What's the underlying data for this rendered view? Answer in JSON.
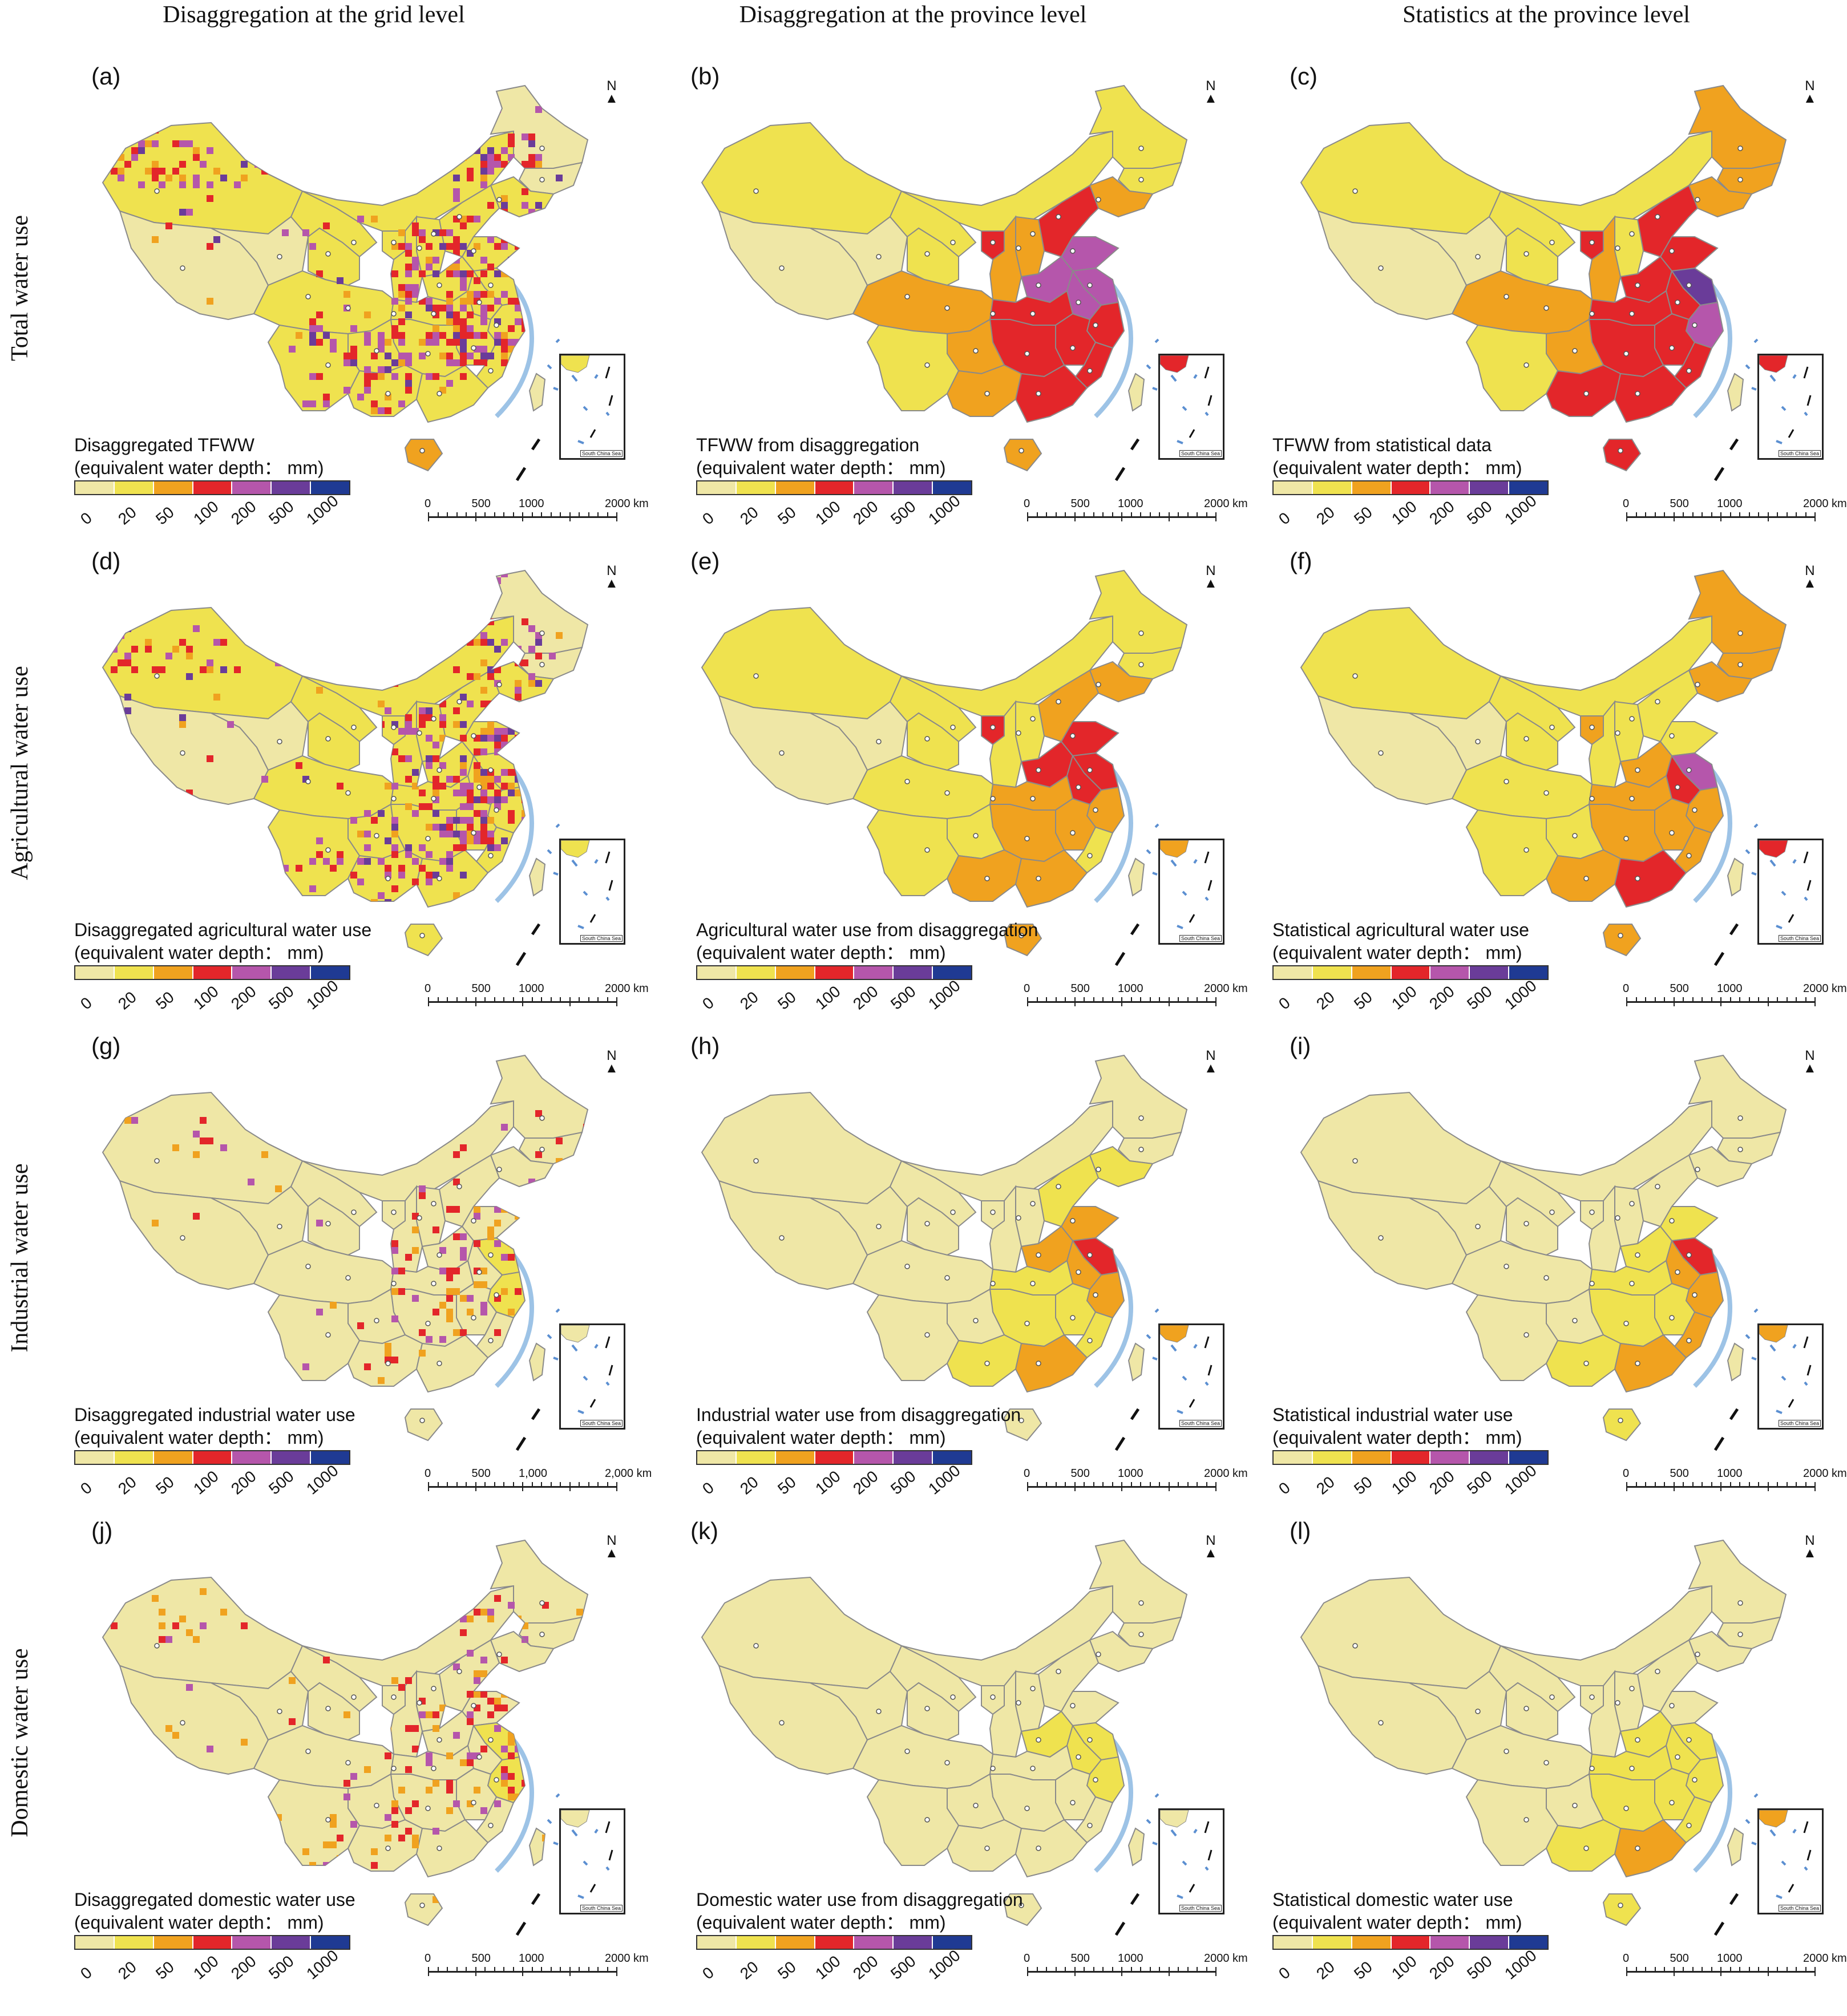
{
  "columns": [
    "Disaggregation at the grid level",
    "Disaggregation at the province level",
    "Statistics at the province level"
  ],
  "rows": [
    "Total water use",
    "Agricultural water use",
    "Industrial water use",
    "Domestic water use"
  ],
  "legend_colors": [
    "#efe7a6",
    "#efe24f",
    "#f0a21f",
    "#e3262a",
    "#b556ab",
    "#6a3c99",
    "#1f3a93"
  ],
  "legend_ticks": [
    "0",
    "20",
    "50",
    "100",
    "200",
    "500",
    "1000"
  ],
  "north_symbol": "N",
  "inset_caption": "South China Sea",
  "panels": [
    {
      "label": "(a)",
      "legend_title": "Disaggregated TFWW",
      "legend_unit": "(equivalent water depth： mm)",
      "scale": [
        "0",
        "500",
        "1000",
        "2000 km"
      ],
      "province_levels": {
        "xj": 1,
        "tb": 0,
        "qh": 0,
        "nm": 1,
        "gs": 1,
        "ic": 1,
        "sc": 1,
        "yn": 1,
        "gz": 1,
        "gx": 1,
        "hun": 1,
        "hub": 1,
        "jx": 1,
        "fj": 1,
        "zj": 1,
        "ah": 1,
        "js": 1,
        "sd": 1,
        "hen": 1,
        "heb": 1,
        "sx": 1,
        "sax": 1,
        "nx": 1,
        "ln": 1,
        "jl": 0,
        "hlj": 0,
        "gd": 1,
        "hain": 2,
        "tw": 0
      }
    },
    {
      "label": "(b)",
      "legend_title": "TFWW from disaggregation",
      "legend_unit": "(equivalent water depth： mm)",
      "scale": [
        "0",
        "500",
        "1000",
        "2000 km"
      ],
      "province_levels": {
        "xj": 1,
        "tb": 0,
        "qh": 0,
        "nm": 1,
        "gs": 1,
        "ic": 1,
        "sc": 2,
        "yn": 1,
        "gz": 2,
        "gx": 2,
        "hun": 3,
        "hub": 3,
        "jx": 3,
        "fj": 3,
        "zj": 3,
        "ah": 4,
        "js": 4,
        "sd": 4,
        "hen": 4,
        "heb": 3,
        "sx": 2,
        "sax": 2,
        "nx": 3,
        "ln": 2,
        "jl": 1,
        "hlj": 1,
        "gd": 3,
        "hain": 2,
        "tw": 0
      }
    },
    {
      "label": "(c)",
      "legend_title": "TFWW from statistical data",
      "legend_unit": "(equivalent water depth： mm)",
      "scale": [
        "0",
        "500",
        "1000",
        "2000 km"
      ],
      "province_levels": {
        "xj": 1,
        "tb": 0,
        "qh": 0,
        "nm": 1,
        "gs": 1,
        "ic": 1,
        "sc": 2,
        "yn": 1,
        "gz": 2,
        "gx": 3,
        "hun": 3,
        "hub": 3,
        "jx": 3,
        "fj": 3,
        "zj": 4,
        "ah": 3,
        "js": 5,
        "sd": 3,
        "hen": 3,
        "heb": 3,
        "sx": 1,
        "sax": 2,
        "nx": 3,
        "ln": 2,
        "jl": 2,
        "hlj": 2,
        "gd": 3,
        "hain": 3,
        "tw": 0
      }
    },
    {
      "label": "(d)",
      "legend_title": "Disaggregated agricultural water use",
      "legend_unit": "(equivalent water depth： mm)",
      "scale": [
        "0",
        "500",
        "1000",
        "2000 km"
      ],
      "province_levels": {
        "xj": 1,
        "tb": 0,
        "qh": 0,
        "nm": 1,
        "gs": 1,
        "ic": 1,
        "sc": 1,
        "yn": 1,
        "gz": 1,
        "gx": 1,
        "hun": 1,
        "hub": 1,
        "jx": 1,
        "fj": 1,
        "zj": 1,
        "ah": 1,
        "js": 1,
        "sd": 1,
        "hen": 1,
        "heb": 1,
        "sx": 1,
        "sax": 1,
        "nx": 1,
        "ln": 1,
        "jl": 0,
        "hlj": 0,
        "gd": 1,
        "hain": 1,
        "tw": 0
      }
    },
    {
      "label": "(e)",
      "legend_title": "Agricultural water use from disaggregation",
      "legend_unit": "(equivalent water depth： mm)",
      "scale": [
        "0",
        "500",
        "1000",
        "2000 km"
      ],
      "province_levels": {
        "xj": 1,
        "tb": 0,
        "qh": 0,
        "nm": 1,
        "gs": 1,
        "ic": 1,
        "sc": 1,
        "yn": 1,
        "gz": 1,
        "gx": 2,
        "hun": 2,
        "hub": 2,
        "jx": 2,
        "fj": 1,
        "zj": 2,
        "ah": 3,
        "js": 3,
        "sd": 3,
        "hen": 3,
        "heb": 2,
        "sx": 1,
        "sax": 1,
        "nx": 3,
        "ln": 2,
        "jl": 1,
        "hlj": 1,
        "gd": 2,
        "hain": 2,
        "tw": 0
      }
    },
    {
      "label": "(f)",
      "legend_title": "Statistical agricultural water use",
      "legend_unit": "(equivalent water depth： mm)",
      "scale": [
        "0",
        "500",
        "1000",
        "2000 km"
      ],
      "province_levels": {
        "xj": 1,
        "tb": 0,
        "qh": 0,
        "nm": 1,
        "gs": 1,
        "ic": 1,
        "sc": 1,
        "yn": 1,
        "gz": 1,
        "gx": 2,
        "hun": 2,
        "hub": 2,
        "jx": 2,
        "fj": 2,
        "zj": 2,
        "ah": 3,
        "js": 4,
        "sd": 1,
        "hen": 2,
        "heb": 1,
        "sx": 1,
        "sax": 1,
        "nx": 2,
        "ln": 2,
        "jl": 2,
        "hlj": 2,
        "gd": 3,
        "hain": 2,
        "tw": 0
      }
    },
    {
      "label": "(g)",
      "legend_title": "Disaggregated industrial water use",
      "legend_unit": "(equivalent water depth： mm)",
      "scale": [
        "0",
        "500",
        "1,000",
        "2,000 km"
      ],
      "province_levels": {
        "xj": 0,
        "tb": 0,
        "qh": 0,
        "nm": 0,
        "gs": 0,
        "ic": 0,
        "sc": 0,
        "yn": 0,
        "gz": 0,
        "gx": 0,
        "hun": 0,
        "hub": 0,
        "jx": 0,
        "fj": 0,
        "zj": 1,
        "ah": 0,
        "js": 1,
        "sd": 0,
        "hen": 0,
        "heb": 0,
        "sx": 0,
        "sax": 0,
        "nx": 0,
        "ln": 0,
        "jl": 0,
        "hlj": 0,
        "gd": 0,
        "hain": 0,
        "tw": 0
      }
    },
    {
      "label": "(h)",
      "legend_title": "Industrial water use from disaggregation",
      "legend_unit": "(equivalent water depth： mm)",
      "scale": [
        "0",
        "500",
        "1000",
        "2000 km"
      ],
      "province_levels": {
        "xj": 0,
        "tb": 0,
        "qh": 0,
        "nm": 0,
        "gs": 0,
        "ic": 0,
        "sc": 0,
        "yn": 0,
        "gz": 0,
        "gx": 1,
        "hun": 1,
        "hub": 1,
        "jx": 1,
        "fj": 1,
        "zj": 2,
        "ah": 2,
        "js": 3,
        "sd": 2,
        "hen": 2,
        "heb": 1,
        "sx": 0,
        "sax": 0,
        "nx": 0,
        "ln": 1,
        "jl": 0,
        "hlj": 0,
        "gd": 2,
        "hain": 0,
        "tw": 0
      }
    },
    {
      "label": "(i)",
      "legend_title": "Statistical industrial water use",
      "legend_unit": "(equivalent water depth： mm)",
      "scale": [
        "0",
        "500",
        "1000",
        "2000 km"
      ],
      "province_levels": {
        "xj": 0,
        "tb": 0,
        "qh": 0,
        "nm": 0,
        "gs": 0,
        "ic": 0,
        "sc": 0,
        "yn": 0,
        "gz": 0,
        "gx": 1,
        "hun": 1,
        "hub": 1,
        "jx": 1,
        "fj": 2,
        "zj": 2,
        "ah": 2,
        "js": 3,
        "sd": 1,
        "hen": 1,
        "heb": 0,
        "sx": 0,
        "sax": 0,
        "nx": 0,
        "ln": 0,
        "jl": 0,
        "hlj": 0,
        "gd": 2,
        "hain": 1,
        "tw": 0
      }
    },
    {
      "label": "(j)",
      "legend_title": "Disaggregated domestic water use",
      "legend_unit": "(equivalent water depth： mm)",
      "scale": [
        "0",
        "500",
        "1000",
        "2000 km"
      ],
      "province_levels": {
        "xj": 0,
        "tb": 0,
        "qh": 0,
        "nm": 0,
        "gs": 0,
        "ic": 0,
        "sc": 0,
        "yn": 0,
        "gz": 0,
        "gx": 0,
        "hun": 0,
        "hub": 0,
        "jx": 0,
        "fj": 0,
        "zj": 1,
        "ah": 0,
        "js": 1,
        "sd": 0,
        "hen": 0,
        "heb": 0,
        "sx": 0,
        "sax": 0,
        "nx": 0,
        "ln": 0,
        "jl": 0,
        "hlj": 0,
        "gd": 0,
        "hain": 0,
        "tw": 0
      }
    },
    {
      "label": "(k)",
      "legend_title": "Domestic water use from disaggregation",
      "legend_unit": "(equivalent water depth： mm)",
      "scale": [
        "0",
        "500",
        "1000",
        "2000 km"
      ],
      "province_levels": {
        "xj": 0,
        "tb": 0,
        "qh": 0,
        "nm": 0,
        "gs": 0,
        "ic": 0,
        "sc": 0,
        "yn": 0,
        "gz": 0,
        "gx": 0,
        "hun": 0,
        "hub": 0,
        "jx": 0,
        "fj": 0,
        "zj": 1,
        "ah": 1,
        "js": 1,
        "sd": 0,
        "hen": 1,
        "heb": 0,
        "sx": 0,
        "sax": 0,
        "nx": 0,
        "ln": 0,
        "jl": 0,
        "hlj": 0,
        "gd": 0,
        "hain": 0,
        "tw": 0
      }
    },
    {
      "label": "(l)",
      "legend_title": "Statistical domestic water use",
      "legend_unit": "(equivalent water depth： mm)",
      "scale": [
        "0",
        "500",
        "1000",
        "2000 km"
      ],
      "province_levels": {
        "xj": 0,
        "tb": 0,
        "qh": 0,
        "nm": 0,
        "gs": 0,
        "ic": 0,
        "sc": 0,
        "yn": 0,
        "gz": 0,
        "gx": 1,
        "hun": 1,
        "hub": 1,
        "jx": 1,
        "fj": 1,
        "zj": 1,
        "ah": 1,
        "js": 1,
        "sd": 0,
        "hen": 1,
        "heb": 0,
        "sx": 0,
        "sax": 0,
        "nx": 0,
        "ln": 0,
        "jl": 0,
        "hlj": 0,
        "gd": 2,
        "hain": 1,
        "tw": 0
      }
    }
  ]
}
